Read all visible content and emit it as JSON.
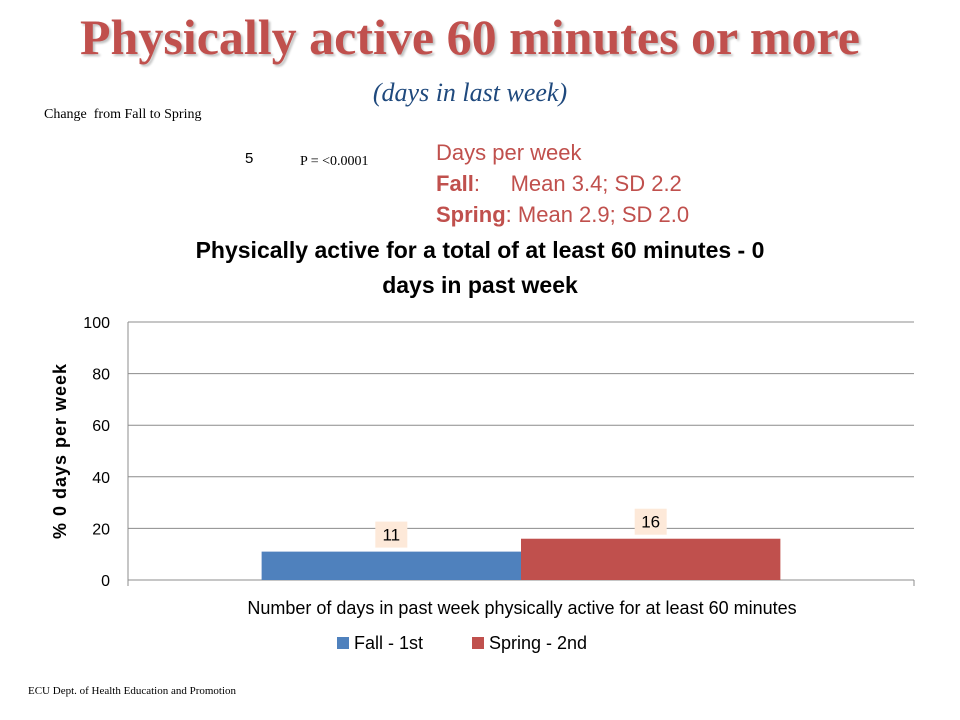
{
  "slide": {
    "title": "Physically active 60 minutes or more",
    "subtitle": "(days in last week)",
    "change_label": "Change  from Fall to Spring",
    "number": "5",
    "p_value": "P = <0.0001",
    "stats": {
      "heading": "Days per week",
      "fall_term": "Fall",
      "fall_rest": ":     Mean 3.4; SD 2.2",
      "spring_term": "Spring",
      "spring_rest": ": Mean 2.9; SD 2.0"
    },
    "footer": "ECU Dept. of Health Education and Promotion"
  },
  "chart_data": {
    "type": "bar",
    "title_lines": [
      "Physically active for a total of at least 60 minutes - 0",
      "days in past week"
    ],
    "categories": [
      "Number of days in past week physically active for at least 60 minutes"
    ],
    "series": [
      {
        "name": "Fall - 1st",
        "values": [
          11
        ],
        "color": "#4f81bd"
      },
      {
        "name": "Spring - 2nd",
        "values": [
          16
        ],
        "color": "#c0504d"
      }
    ],
    "xlabel": "Number of days in past week physically active for at least 60 minutes",
    "ylabel": "% 0 days per week",
    "ylim": [
      0,
      100
    ],
    "yticks": [
      0,
      20,
      40,
      60,
      80,
      100
    ],
    "grid": true,
    "legend_position": "bottom",
    "data_label_bg": "#fde9d9"
  }
}
